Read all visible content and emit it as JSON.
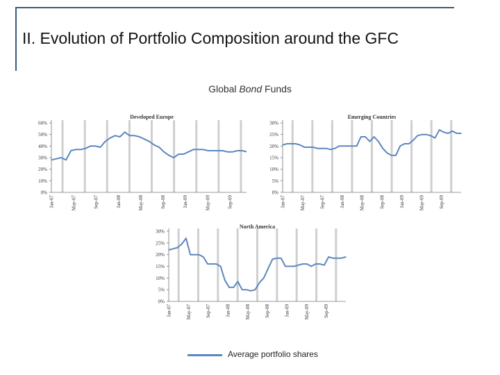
{
  "slide": {
    "title": "II. Evolution of Portfolio Composition around the GFC",
    "subtitle_prefix": "Global ",
    "subtitle_emphasis": "Bond",
    "subtitle_suffix": " Funds"
  },
  "legend": {
    "label": "Average portfolio shares"
  },
  "colors": {
    "series": "#5b86c0",
    "vband": "#cfcfcf",
    "text": "#222222"
  },
  "chart_data": [
    {
      "type": "line",
      "title": "Developed Europe",
      "ylim": [
        0,
        60
      ],
      "yticks": [
        "0%",
        "10%",
        "20%",
        "30%",
        "40%",
        "50%",
        "60%"
      ],
      "tick_labels": [
        "Jan-07",
        "May-07",
        "Sep-07",
        "Jan-08",
        "May-08",
        "Sep-08",
        "Jan-09",
        "May-09",
        "Sep-09"
      ],
      "series": [
        {
          "name": "Average portfolio shares",
          "values": [
            28,
            29,
            30,
            28,
            36,
            37,
            37,
            38,
            40,
            40,
            39,
            44,
            47,
            49,
            48,
            52,
            49,
            49,
            48,
            46,
            44,
            41,
            39,
            35,
            32,
            30,
            33,
            33,
            35,
            37,
            37,
            37,
            36,
            36,
            36,
            36,
            35,
            35,
            36,
            36,
            35,
            34
          ]
        }
      ]
    },
    {
      "type": "line",
      "title": "Emerging Countries",
      "ylim": [
        0,
        30
      ],
      "yticks": [
        "0%",
        "5%",
        "10%",
        "15%",
        "20%",
        "25%",
        "30%"
      ],
      "tick_labels": [
        "Jan-07",
        "May-07",
        "Sep-07",
        "Jan-08",
        "May-08",
        "Sep-08",
        "Jan-09",
        "May-09",
        "Sep-09"
      ],
      "series": [
        {
          "name": "Average portfolio shares",
          "values": [
            20.5,
            21,
            21,
            21,
            20.5,
            19.5,
            19.5,
            19.5,
            19,
            19,
            19,
            18.5,
            19,
            20,
            20,
            20,
            20,
            20,
            24,
            24,
            22,
            24,
            22,
            19,
            17,
            16,
            16,
            20,
            21,
            21,
            22.5,
            24.5,
            25,
            25,
            24.5,
            23.5,
            27,
            26,
            25.5,
            26.5,
            25.5,
            25.5
          ]
        }
      ]
    },
    {
      "type": "line",
      "title": "North America",
      "ylim": [
        0,
        30
      ],
      "yticks": [
        "0%",
        "5%",
        "10%",
        "15%",
        "20%",
        "25%",
        "30%"
      ],
      "tick_labels": [
        "Jan-07",
        "May-07",
        "Sep-07",
        "Jan-08",
        "May-08",
        "Sep-08",
        "Jan-09",
        "May-09",
        "Sep-09"
      ],
      "series": [
        {
          "name": "Average portfolio shares",
          "values": [
            22,
            22.5,
            23,
            24.5,
            27,
            20,
            20,
            20,
            19,
            16,
            16,
            16,
            15,
            9,
            6,
            6,
            8.5,
            5,
            5,
            4.5,
            5,
            8,
            10,
            14,
            18,
            18.5,
            18.5,
            15,
            15,
            15,
            15.5,
            16,
            16,
            15,
            16,
            16,
            15.5,
            19,
            18.5,
            18.5,
            18.5,
            19
          ]
        }
      ]
    }
  ]
}
